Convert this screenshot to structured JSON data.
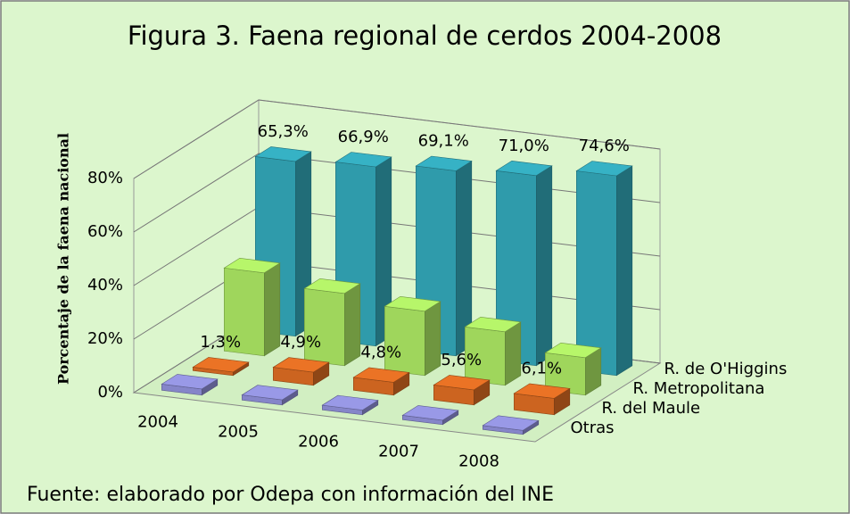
{
  "chart_data": {
    "type": "bar3d",
    "title": "Figura 3. Faena regional de cerdos 2004-2008",
    "y_label": "Porcentaje de la faena nacional",
    "source": "Fuente: elaborado por Odepa con información del INE",
    "categories": [
      "2004",
      "2005",
      "2006",
      "2007",
      "2008"
    ],
    "series": [
      {
        "name": "R. de O'Higgins",
        "color": "#2f9bab",
        "values": [
          65.3,
          66.9,
          69.1,
          71.0,
          74.6
        ],
        "value_labels": [
          "65,3%",
          "66,9%",
          "69,1%",
          "71,0%",
          "74,6%"
        ]
      },
      {
        "name": "R. Metropolitana",
        "color": "#9fd65c",
        "values": [
          31,
          27,
          24,
          20,
          14
        ]
      },
      {
        "name": "R. del Maule",
        "color": "#cc6420",
        "values": [
          1.3,
          4.9,
          4.8,
          5.6,
          6.1
        ],
        "value_labels": [
          "1,3%",
          "4,9%",
          "4,8%",
          "5,6%",
          "6,1%"
        ]
      },
      {
        "name": "Otras",
        "color": "#8585c9",
        "values": [
          2.3,
          1.9,
          1.7,
          1.6,
          1.5
        ]
      }
    ],
    "ylim": [
      0,
      80
    ],
    "yticks": [
      {
        "value": 0,
        "label": "0%"
      },
      {
        "value": 20,
        "label": "20%"
      },
      {
        "value": 40,
        "label": "40%"
      },
      {
        "value": 60,
        "label": "60%"
      },
      {
        "value": 80,
        "label": "80%"
      }
    ],
    "grid": true
  }
}
